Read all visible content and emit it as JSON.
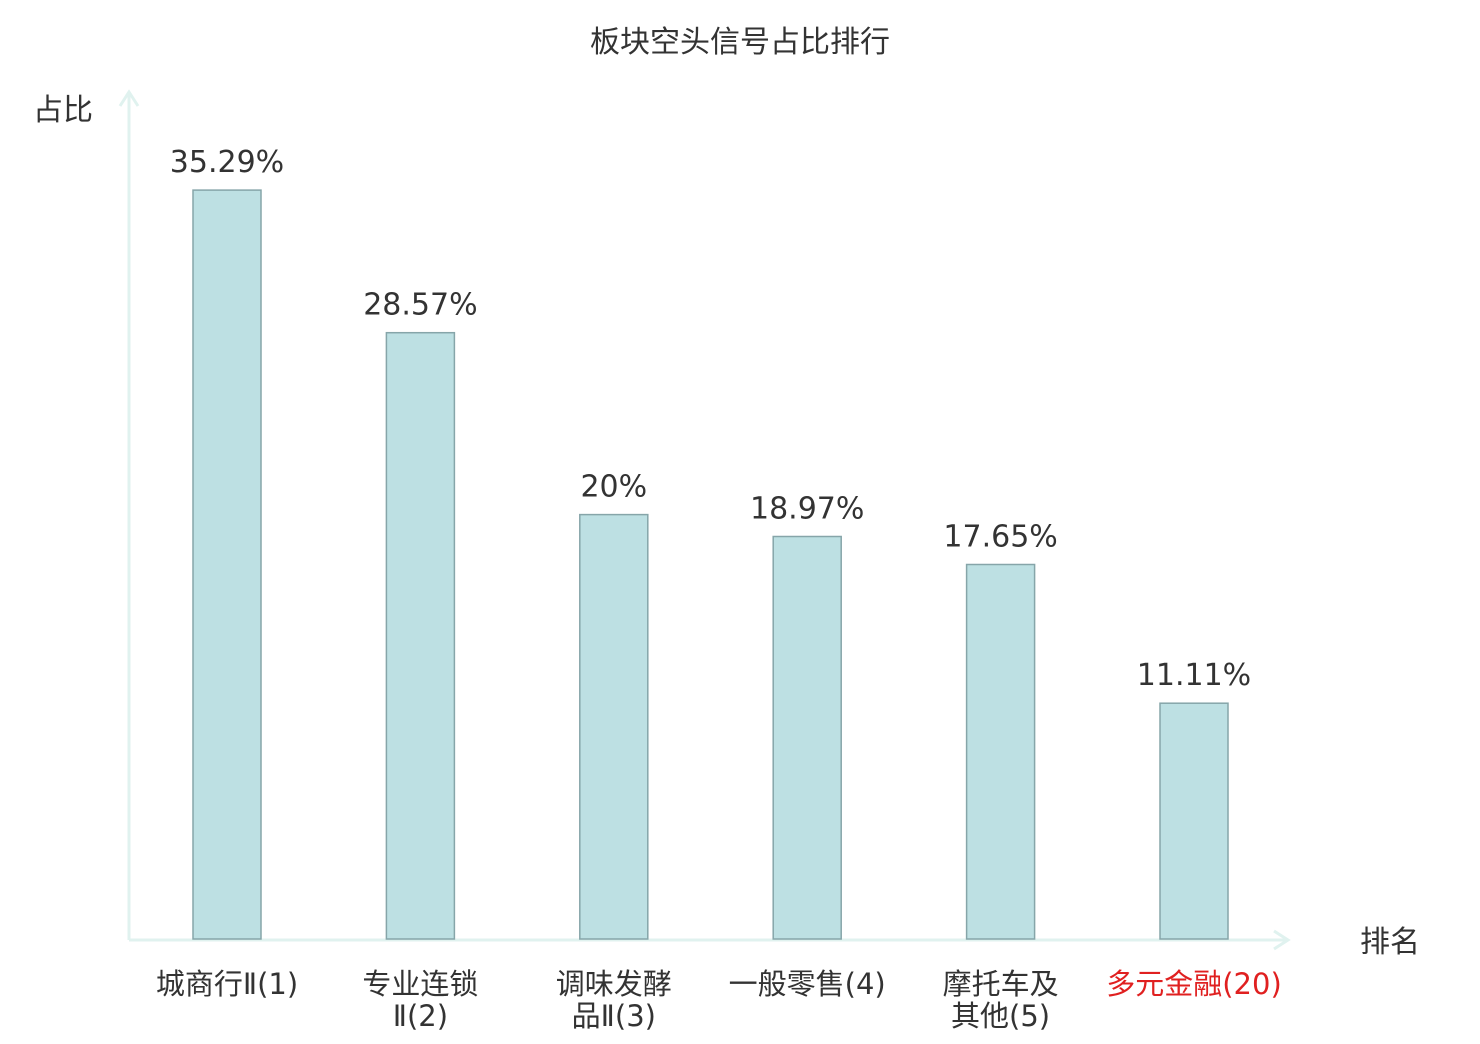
{
  "chart_data": {
    "type": "bar",
    "title": "板块空头信号占比排行",
    "ylabel": "占比",
    "xlabel": "排名",
    "categories": [
      [
        "城商行Ⅱ(1)"
      ],
      [
        "专业连锁",
        "Ⅱ(2)"
      ],
      [
        "调味发酵",
        "品Ⅱ(3)"
      ],
      [
        "一般零售(4)"
      ],
      [
        "摩托车及",
        "其他(5)"
      ],
      [
        "多元金融(20)"
      ]
    ],
    "values": [
      35.29,
      28.57,
      20,
      18.97,
      17.65,
      11.11
    ],
    "value_labels": [
      "35.29%",
      "28.57%",
      "20%",
      "18.97%",
      "17.65%",
      "11.11%"
    ],
    "highlight_index": 5,
    "ylim": [
      0,
      40
    ],
    "grid": false,
    "colors": {
      "bar_fill": "#bde0e3",
      "bar_stroke": "#86a5a9",
      "axis": "#e0f2ef",
      "text": "#333333",
      "highlight_text": "#e02020"
    }
  }
}
